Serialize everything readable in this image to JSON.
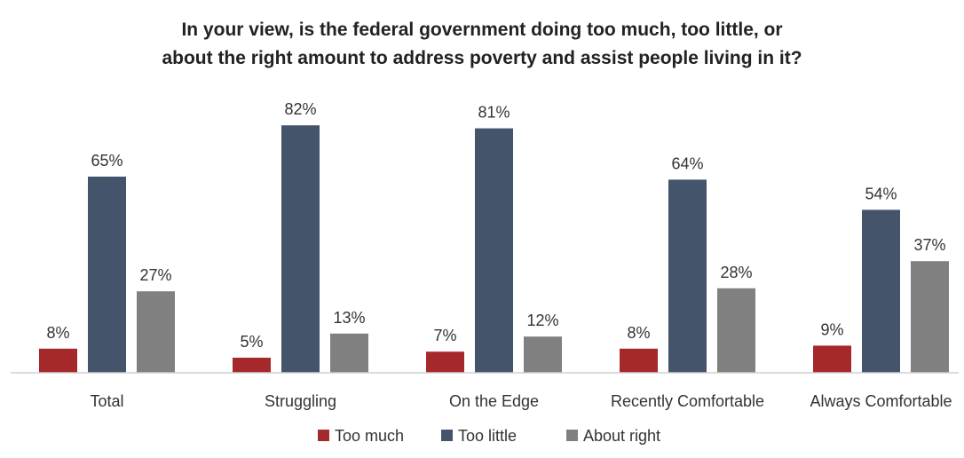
{
  "chart_data": {
    "type": "bar",
    "title_lines": [
      "In your view, is the federal government doing too much, too little, or",
      "about the right amount to address poverty and assist people living in it?"
    ],
    "categories": [
      "Total",
      "Struggling",
      "On the Edge",
      "Recently Comfortable",
      "Always Comfortable"
    ],
    "series": [
      {
        "name": "Too much",
        "color": "#A5282A",
        "values": [
          8,
          5,
          7,
          8,
          9
        ],
        "labels": [
          "8%",
          "5%",
          "7%",
          "8%",
          "9%"
        ]
      },
      {
        "name": "Too little",
        "color": "#44546A",
        "values": [
          65,
          82,
          81,
          64,
          54
        ],
        "labels": [
          "65%",
          "82%",
          "81%",
          "64%",
          "54%"
        ]
      },
      {
        "name": "About right",
        "color": "#808080",
        "values": [
          27,
          13,
          12,
          28,
          37
        ],
        "labels": [
          "27%",
          "13%",
          "12%",
          "28%",
          "37%"
        ]
      }
    ],
    "ylim": [
      0,
      100
    ],
    "grid": false,
    "legend_position": "bottom",
    "xlabel": "",
    "ylabel": ""
  }
}
